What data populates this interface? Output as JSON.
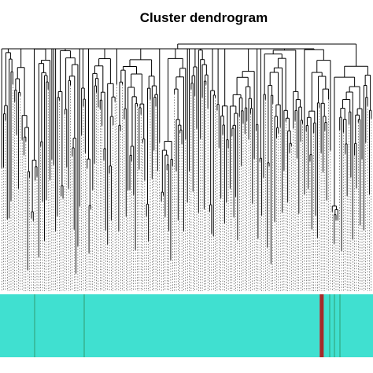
{
  "chart_data": {
    "type": "dendrogram",
    "title": "Cluster dendrogram",
    "xlabel": "",
    "ylabel": "",
    "axis_visible": false,
    "leaf_count": 200,
    "leaf_guides": "dashed",
    "module_colors": {
      "track_base": "#40E0D0",
      "highlight": "#A52A2A",
      "segment_line": "#2E8B57"
    },
    "module_track": [
      {
        "module": "turquoise",
        "color": "#40E0D0",
        "start_fraction": 0.0,
        "end_fraction": 0.857
      },
      {
        "module": "brown",
        "color": "#A52A2A",
        "start_fraction": 0.857,
        "end_fraction": 0.868
      },
      {
        "module": "turquoise",
        "color": "#40E0D0",
        "start_fraction": 0.868,
        "end_fraction": 1.0
      }
    ]
  }
}
